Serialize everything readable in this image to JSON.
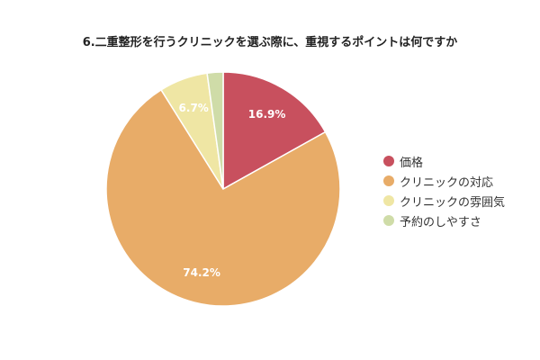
{
  "chart_data": {
    "type": "pie",
    "title": "6.二重整形を行うクリニックを選ぶ際に、重視するポイントは何ですか",
    "legend_position": "right",
    "slices": [
      {
        "label": "価格",
        "value": 16.9,
        "display": "16.9%",
        "color": "#c8505e"
      },
      {
        "label": "クリニックの対応",
        "value": 74.2,
        "display": "74.2%",
        "color": "#e8ac68"
      },
      {
        "label": "クリニックの雰囲気",
        "value": 6.7,
        "display": "6.7%",
        "color": "#efe6a4"
      },
      {
        "label": "予約のしやすさ",
        "value": 2.2,
        "display": "",
        "color": "#cfdca8"
      }
    ]
  }
}
